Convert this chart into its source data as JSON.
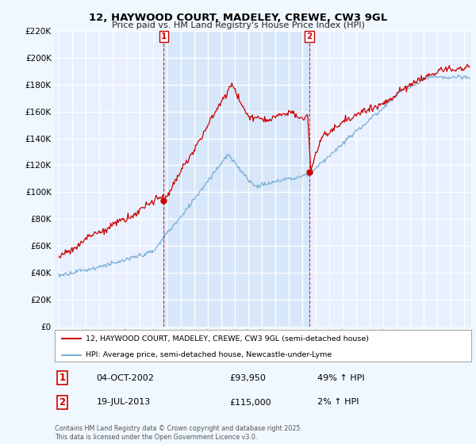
{
  "title_line1": "12, HAYWOOD COURT, MADELEY, CREWE, CW3 9GL",
  "title_line2": "Price paid vs. HM Land Registry's House Price Index (HPI)",
  "background_color": "#f0f8ff",
  "plot_bg_color": "#e8f0ff",
  "shade_color": "#d0e4f7",
  "grid_color": "#ffffff",
  "red_color": "#cc0000",
  "blue_color": "#7aaed6",
  "marker1_date_x": 2002.75,
  "marker1_y": 93950,
  "marker2_date_x": 2013.54,
  "marker2_y": 115000,
  "marker1_date_str": "04-OCT-2002",
  "marker1_price": "£93,950",
  "marker1_hpi": "49% ↑ HPI",
  "marker2_date_str": "19-JUL-2013",
  "marker2_price": "£115,000",
  "marker2_hpi": "2% ↑ HPI",
  "legend_line1": "12, HAYWOOD COURT, MADELEY, CREWE, CW3 9GL (semi-detached house)",
  "legend_line2": "HPI: Average price, semi-detached house, Newcastle-under-Lyme",
  "footer": "Contains HM Land Registry data © Crown copyright and database right 2025.\nThis data is licensed under the Open Government Licence v3.0.",
  "ylim": [
    0,
    220000
  ],
  "xlim_start": 1994.7,
  "xlim_end": 2025.5
}
